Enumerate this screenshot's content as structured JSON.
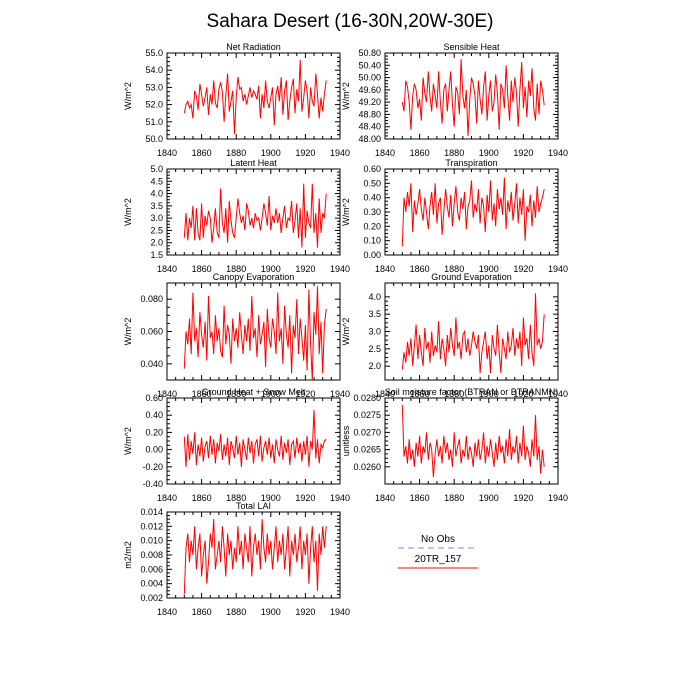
{
  "figure": {
    "title": "Sahara Desert (16-30N,20W-30E)",
    "line_color": "#ff0000",
    "obs_color": "#8888dd"
  },
  "legend": {
    "obs_label": "No Obs",
    "model_label": "20TR_157"
  },
  "chart_data": [
    {
      "type": "line",
      "title": "Net Radiation",
      "ylabel": "W/m^2",
      "xlim": [
        1840,
        1940
      ],
      "ylim": [
        50.0,
        55.0
      ],
      "x_ticks": [
        "1840",
        "1860",
        "1880",
        "1900",
        "1920",
        "1940"
      ],
      "y_ticks": [
        "50.0",
        "51.0",
        "52.0",
        "53.0",
        "54.0",
        "55.0"
      ],
      "series": [
        {
          "x_start": 1850,
          "values": [
            51.5,
            52.0,
            52.2,
            51.8,
            52.0,
            51.2,
            52.8,
            52.5,
            51.7,
            53.2,
            52.6,
            51.9,
            52.4,
            53.0,
            51.4,
            52.6,
            52.0,
            53.4,
            52.1,
            51.8,
            52.9,
            53.3,
            52.7,
            51.0,
            52.5,
            53.8,
            51.6,
            52.2,
            52.8,
            50.3,
            52.4,
            53.6,
            52.9,
            53.0,
            52.2,
            52.6,
            52.0,
            52.5,
            53.0,
            52.4,
            52.8,
            52.6,
            52.3,
            53.1,
            51.2,
            52.6,
            51.8,
            53.4,
            52.2,
            51.8,
            52.4,
            53.0,
            50.8,
            52.6,
            53.1,
            52.2,
            53.6,
            51.4,
            52.8,
            53.4,
            51.1,
            52.2,
            53.0,
            53.5,
            51.5,
            52.9,
            52.2,
            54.6,
            51.6,
            52.4,
            53.4,
            52.8,
            51.2,
            53.0,
            52.2,
            51.9,
            53.8,
            52.6,
            51.2,
            52.4,
            51.6,
            52.6,
            53.4
          ]
        }
      ]
    },
    {
      "type": "line",
      "title": "Sensible Heat",
      "ylabel": "W/m^2",
      "xlim": [
        1840,
        1940
      ],
      "ylim": [
        48.0,
        50.8
      ],
      "x_ticks": [
        "1840",
        "1860",
        "1880",
        "1900",
        "1920",
        "1940"
      ],
      "y_ticks": [
        "48.00",
        "48.40",
        "48.80",
        "49.20",
        "49.60",
        "50.00",
        "50.40",
        "50.80"
      ],
      "series": [
        {
          "x_start": 1850,
          "values": [
            49.2,
            48.9,
            49.9,
            49.7,
            49.2,
            48.3,
            49.4,
            49.8,
            49.6,
            49.0,
            49.3,
            48.6,
            50.0,
            49.5,
            49.2,
            50.2,
            49.4,
            48.9,
            49.8,
            49.4,
            49.0,
            50.2,
            49.2,
            48.5,
            49.6,
            49.8,
            48.9,
            49.6,
            50.2,
            49.1,
            48.4,
            49.7,
            49.5,
            48.8,
            50.6,
            49.4,
            49.0,
            49.6,
            48.1,
            49.3,
            50.0,
            49.8,
            49.4,
            48.5,
            49.9,
            49.3,
            48.8,
            49.7,
            50.2,
            48.6,
            49.4,
            49.9,
            48.9,
            49.2,
            50.1,
            49.5,
            48.3,
            49.8,
            49.6,
            49.0,
            50.4,
            49.4,
            48.6,
            49.9,
            49.2,
            50.0,
            49.5,
            48.4,
            49.6,
            50.5,
            49.0,
            49.7,
            48.7,
            49.9,
            49.4,
            50.3,
            49.0,
            48.6,
            49.8,
            48.8,
            49.9,
            49.6,
            49.1
          ]
        }
      ]
    },
    {
      "type": "line",
      "title": "Latent Heat",
      "ylabel": "W/m^2",
      "xlim": [
        1840,
        1940
      ],
      "ylim": [
        1.5,
        5.0
      ],
      "x_ticks": [
        "1840",
        "1860",
        "1880",
        "1900",
        "1920",
        "1940"
      ],
      "y_ticks": [
        "1.5",
        "2.0",
        "2.5",
        "3.0",
        "3.5",
        "4.0",
        "4.5",
        "5.0"
      ],
      "series": [
        {
          "x_start": 1850,
          "values": [
            2.2,
            3.2,
            2.1,
            3.0,
            2.6,
            3.5,
            2.1,
            3.4,
            2.4,
            2.1,
            3.6,
            2.2,
            3.1,
            2.7,
            3.3,
            3.0,
            2.0,
            2.6,
            3.4,
            2.4,
            2.2,
            4.2,
            2.8,
            2.4,
            3.4,
            2.0,
            3.7,
            2.9,
            2.4,
            2.2,
            3.0,
            3.8,
            3.2,
            2.8,
            3.1,
            2.5,
            3.6,
            3.3,
            2.7,
            3.0,
            2.6,
            3.2,
            2.9,
            3.0,
            2.5,
            3.0,
            3.6,
            3.2,
            2.7,
            3.9,
            2.5,
            3.1,
            2.8,
            3.4,
            2.8,
            3.2,
            2.4,
            3.0,
            3.5,
            2.6,
            3.0,
            2.9,
            3.7,
            2.4,
            2.9,
            3.6,
            2.2,
            3.4,
            1.8,
            4.4,
            2.2,
            3.3,
            2.8,
            2.6,
            4.4,
            2.4,
            3.2,
            1.8,
            3.8,
            2.4,
            3.2,
            3.0,
            4.0
          ]
        }
      ]
    },
    {
      "type": "line",
      "title": "Transpiration",
      "ylabel": "W/m^2",
      "xlim": [
        1840,
        1940
      ],
      "ylim": [
        0.0,
        0.6
      ],
      "x_ticks": [
        "1840",
        "1860",
        "1880",
        "1900",
        "1920",
        "1940"
      ],
      "y_ticks": [
        "0.00",
        "0.10",
        "0.20",
        "0.30",
        "0.40",
        "0.50",
        "0.60"
      ],
      "series": [
        {
          "x_start": 1850,
          "values": [
            0.06,
            0.4,
            0.3,
            0.44,
            0.34,
            0.5,
            0.16,
            0.38,
            0.28,
            0.36,
            0.46,
            0.32,
            0.24,
            0.4,
            0.3,
            0.18,
            0.34,
            0.44,
            0.28,
            0.5,
            0.22,
            0.36,
            0.4,
            0.14,
            0.3,
            0.46,
            0.34,
            0.26,
            0.42,
            0.2,
            0.36,
            0.48,
            0.3,
            0.24,
            0.4,
            0.32,
            0.44,
            0.18,
            0.34,
            0.38,
            0.52,
            0.26,
            0.36,
            0.3,
            0.46,
            0.22,
            0.4,
            0.34,
            0.16,
            0.42,
            0.3,
            0.52,
            0.24,
            0.36,
            0.2,
            0.46,
            0.32,
            0.4,
            0.28,
            0.54,
            0.18,
            0.38,
            0.3,
            0.44,
            0.24,
            0.36,
            0.5,
            0.22,
            0.4,
            0.28,
            0.46,
            0.1,
            0.34,
            0.3,
            0.42,
            0.2,
            0.38,
            0.26,
            0.48,
            0.3,
            0.36,
            0.4,
            0.46
          ]
        }
      ]
    },
    {
      "type": "line",
      "title": "Canopy Evaporation",
      "ylabel": "W/m^2",
      "xlim": [
        1840,
        1940
      ],
      "ylim": [
        0.03,
        0.09
      ],
      "x_ticks": [
        "1840",
        "1860",
        "1880",
        "1900",
        "1920",
        "1940"
      ],
      "y_ticks": [
        "0.040",
        "0.060",
        "0.080"
      ],
      "series": [
        {
          "x_start": 1850,
          "values": [
            0.037,
            0.06,
            0.052,
            0.068,
            0.046,
            0.084,
            0.054,
            0.062,
            0.044,
            0.072,
            0.058,
            0.05,
            0.066,
            0.042,
            0.082,
            0.056,
            0.06,
            0.046,
            0.07,
            0.054,
            0.062,
            0.048,
            0.044,
            0.076,
            0.052,
            0.064,
            0.058,
            0.04,
            0.068,
            0.054,
            0.062,
            0.05,
            0.072,
            0.058,
            0.046,
            0.064,
            0.054,
            0.068,
            0.048,
            0.082,
            0.056,
            0.062,
            0.044,
            0.07,
            0.052,
            0.058,
            0.066,
            0.038,
            0.074,
            0.056,
            0.05,
            0.068,
            0.06,
            0.046,
            0.084,
            0.054,
            0.062,
            0.04,
            0.076,
            0.058,
            0.05,
            0.07,
            0.034,
            0.064,
            0.056,
            0.08,
            0.046,
            0.068,
            0.056,
            0.042,
            0.064,
            0.036,
            0.086,
            0.052,
            0.03,
            0.072,
            0.058,
            0.088,
            0.046,
            0.066,
            0.034,
            0.064,
            0.074
          ]
        }
      ]
    },
    {
      "type": "line",
      "title": "Ground Evaporation",
      "ylabel": "W/m^2",
      "xlim": [
        1840,
        1940
      ],
      "ylim": [
        1.6,
        4.4
      ],
      "x_ticks": [
        "1840",
        "1860",
        "1880",
        "1900",
        "1920",
        "1940"
      ],
      "y_ticks": [
        "2.0",
        "2.5",
        "3.0",
        "3.5",
        "4.0"
      ],
      "series": [
        {
          "x_start": 1850,
          "values": [
            1.9,
            2.4,
            2.1,
            2.7,
            2.3,
            2.8,
            2.0,
            2.6,
            3.2,
            2.2,
            2.9,
            2.4,
            2.0,
            3.1,
            2.5,
            2.7,
            2.1,
            3.0,
            2.3,
            2.6,
            2.4,
            3.3,
            2.2,
            2.8,
            2.5,
            2.0,
            2.9,
            2.4,
            3.1,
            2.6,
            2.3,
            3.4,
            2.5,
            2.7,
            2.2,
            2.9,
            3.0,
            2.4,
            2.8,
            2.3,
            2.6,
            3.0,
            2.7,
            2.5,
            2.9,
            1.8,
            2.4,
            2.7,
            3.0,
            2.2,
            2.6,
            1.8,
            2.9,
            2.5,
            2.3,
            3.2,
            2.4,
            1.8,
            2.8,
            2.5,
            2.2,
            3.0,
            2.4,
            2.6,
            3.1,
            2.3,
            2.8,
            2.5,
            3.0,
            2.0,
            3.4,
            2.6,
            2.8,
            2.2,
            3.2,
            2.4,
            2.0,
            4.1,
            2.6,
            2.8,
            2.5,
            2.7,
            3.5
          ]
        }
      ]
    },
    {
      "type": "line",
      "title": "Ground Heat + Snow Melt",
      "ylabel": "W/m^2",
      "xlim": [
        1840,
        1940
      ],
      "ylim": [
        -0.4,
        0.6
      ],
      "x_ticks": [
        "1840",
        "1860",
        "1880",
        "1900",
        "1920",
        "1940"
      ],
      "y_ticks": [
        "-0.40",
        "-0.20",
        "0.00",
        "0.20",
        "0.40",
        "0.60"
      ],
      "series": [
        {
          "x_start": 1850,
          "values": [
            0.15,
            -0.2,
            0.18,
            -0.12,
            0.1,
            -0.05,
            0.2,
            -0.18,
            0.06,
            -0.08,
            0.14,
            -0.14,
            0.04,
            0.1,
            -0.1,
            0.16,
            -0.06,
            0.12,
            -0.16,
            0.08,
            -0.02,
            0.18,
            -0.12,
            0.06,
            -0.08,
            0.14,
            -0.18,
            0.1,
            0.02,
            -0.1,
            0.16,
            -0.06,
            0.08,
            -0.2,
            0.12,
            0.0,
            -0.12,
            0.14,
            -0.04,
            0.1,
            -0.16,
            0.06,
            0.12,
            -0.08,
            0.16,
            -0.14,
            0.02,
            0.1,
            -0.06,
            0.14,
            -0.1,
            0.06,
            -0.16,
            0.12,
            0.0,
            -0.08,
            0.16,
            -0.12,
            0.08,
            -0.04,
            0.12,
            -0.18,
            0.06,
            0.1,
            -0.1,
            0.14,
            -0.04,
            0.08,
            -0.14,
            0.1,
            -0.06,
            0.16,
            -0.2,
            0.1,
            0.0,
            0.46,
            -0.1,
            0.12,
            -0.16,
            0.06,
            0.02,
            0.1,
            0.12
          ]
        }
      ]
    },
    {
      "type": "line",
      "title": "Soil moisture factor (BTRAN or BTRANMN)",
      "ylabel": "unitless",
      "xlim": [
        1840,
        1940
      ],
      "ylim": [
        0.0255,
        0.028
      ],
      "x_ticks": [
        "1840",
        "1860",
        "1880",
        "1900",
        "1920",
        "1940"
      ],
      "y_ticks": [
        "0.0260",
        "0.0265",
        "0.0270",
        "0.0275",
        "0.0280"
      ],
      "series": [
        {
          "x_start": 1850,
          "values": [
            0.0278,
            0.0263,
            0.0266,
            0.0261,
            0.0268,
            0.0262,
            0.0265,
            0.026,
            0.0267,
            0.0263,
            0.0269,
            0.0261,
            0.0266,
            0.0264,
            0.027,
            0.0262,
            0.0267,
            0.0265,
            0.0257,
            0.0264,
            0.0268,
            0.0263,
            0.0266,
            0.0261,
            0.0269,
            0.0264,
            0.0267,
            0.0262,
            0.0265,
            0.026,
            0.027,
            0.0263,
            0.0266,
            0.0268,
            0.0261,
            0.0265,
            0.0263,
            0.0269,
            0.0262,
            0.0266,
            0.0264,
            0.026,
            0.0267,
            0.0263,
            0.0268,
            0.0262,
            0.0265,
            0.027,
            0.0261,
            0.0266,
            0.0263,
            0.0268,
            0.0264,
            0.026,
            0.0267,
            0.0262,
            0.0269,
            0.0264,
            0.0266,
            0.0261,
            0.0268,
            0.0263,
            0.0271,
            0.0262,
            0.0266,
            0.0264,
            0.0269,
            0.0261,
            0.0267,
            0.0263,
            0.0272,
            0.0262,
            0.0266,
            0.0264,
            0.026,
            0.0268,
            0.0263,
            0.0275,
            0.0262,
            0.0266,
            0.0258,
            0.0265,
            0.026
          ]
        }
      ]
    },
    {
      "type": "line",
      "title": "Total LAI",
      "ylabel": "m2/m2",
      "xlim": [
        1840,
        1940
      ],
      "ylim": [
        0.002,
        0.014
      ],
      "x_ticks": [
        "1840",
        "1860",
        "1880",
        "1900",
        "1920",
        "1940"
      ],
      "y_ticks": [
        "0.002",
        "0.004",
        "0.006",
        "0.008",
        "0.010",
        "0.012",
        "0.014"
      ],
      "series": [
        {
          "x_start": 1850,
          "values": [
            0.0025,
            0.009,
            0.011,
            0.007,
            0.01,
            0.008,
            0.012,
            0.006,
            0.009,
            0.011,
            0.005,
            0.008,
            0.01,
            0.004,
            0.007,
            0.011,
            0.009,
            0.013,
            0.006,
            0.008,
            0.01,
            0.007,
            0.012,
            0.009,
            0.005,
            0.011,
            0.008,
            0.01,
            0.006,
            0.009,
            0.007,
            0.012,
            0.008,
            0.01,
            0.006,
            0.011,
            0.009,
            0.007,
            0.012,
            0.005,
            0.009,
            0.011,
            0.008,
            0.01,
            0.006,
            0.013,
            0.009,
            0.007,
            0.011,
            0.008,
            0.01,
            0.006,
            0.009,
            0.012,
            0.007,
            0.01,
            0.008,
            0.011,
            0.006,
            0.009,
            0.012,
            0.005,
            0.01,
            0.008,
            0.011,
            0.007,
            0.009,
            0.012,
            0.006,
            0.01,
            0.008,
            0.011,
            0.004,
            0.009,
            0.012,
            0.007,
            0.01,
            0.003,
            0.011,
            0.008,
            0.012,
            0.009,
            0.012
          ]
        }
      ]
    }
  ]
}
